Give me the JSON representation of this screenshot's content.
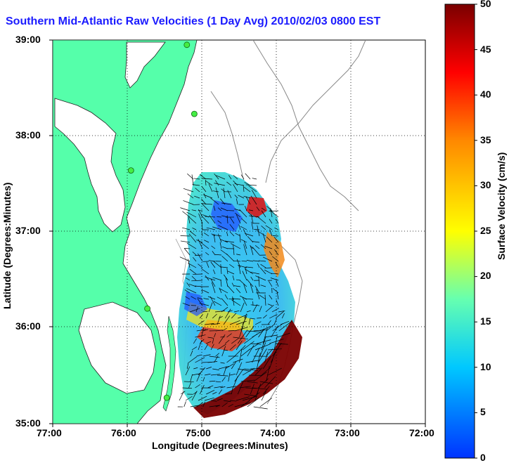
{
  "title": "Southern Mid-Atlantic Raw Velocities (1 Day Avg) 2010/02/03 0800 EST",
  "axes": {
    "xlabel": "Longitude (Degrees:Minutes)",
    "ylabel": "Latitude (Degrees:Minutes)",
    "x_ticks": [
      "77:00",
      "76:00",
      "75:00",
      "74:00",
      "73:00",
      "72:00"
    ],
    "y_ticks": [
      "39:00",
      "38:00",
      "37:00",
      "36:00",
      "35:00"
    ]
  },
  "colorbar": {
    "label": "Surface Velocity (cm/s)",
    "ticks": [
      "50",
      "45",
      "40",
      "35",
      "30",
      "25",
      "20",
      "15",
      "10",
      "5",
      "0"
    ],
    "min": 0,
    "max": 50,
    "colors": [
      "#0033ff",
      "#00c8ff",
      "#66ffb0",
      "#ffff00",
      "#ff8800",
      "#ff0000",
      "#7a0000"
    ]
  },
  "colors": {
    "land": "#55ffaa",
    "water": "#ffffff",
    "title": "#1b1bff",
    "station": "#44ee44"
  },
  "chart_data": {
    "type": "map",
    "x_range": [
      -77,
      -72
    ],
    "y_range": [
      35,
      39
    ],
    "grid": true,
    "units": "cm/s",
    "stations": [
      {
        "lon": -75.2,
        "lat": 38.95
      },
      {
        "lon": -75.1,
        "lat": 38.23
      },
      {
        "lon": -75.95,
        "lat": 37.64
      },
      {
        "lon": -75.73,
        "lat": 36.2
      },
      {
        "lon": -75.47,
        "lat": 35.27
      }
    ]
  }
}
